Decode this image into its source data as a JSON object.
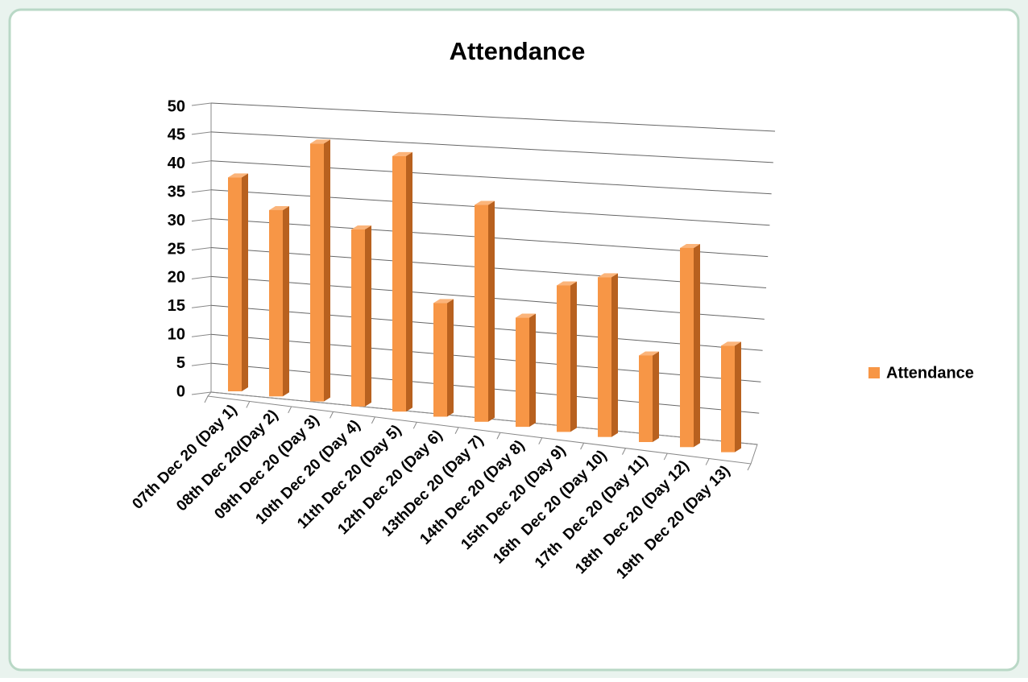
{
  "chart_data": {
    "type": "bar3d",
    "title": "Attendance",
    "categories": [
      "07th Dec 20 (Day 1)",
      "08th Dec 20(Day 2)",
      "09th Dec 20 (Day 3)",
      "10th Dec 20 (Day 4)",
      "11th Dec 20 (Day 5)",
      "12th Dec 20 (Day 6)",
      "13thDec 20 (Day 7)",
      "14th Dec 20 (Day 8)",
      "15th Dec 20 (Day 9)",
      "16th  Dec 20 (Day 10)",
      "17th  Dec 20 (Day 11)",
      "18th  Dec 20 (Day 12)",
      "19th  Dec 20 (Day 13)"
    ],
    "series": [
      {
        "name": "Attendance",
        "color": "#f79646",
        "values": [
          37,
          32,
          44,
          30,
          43,
          19,
          36,
          18,
          24,
          26,
          14,
          32,
          17
        ]
      }
    ],
    "ylim": [
      0,
      50
    ],
    "yticks": [
      0,
      5,
      10,
      15,
      20,
      25,
      30,
      35,
      40,
      45,
      50
    ],
    "grid": true,
    "legend": "right"
  }
}
